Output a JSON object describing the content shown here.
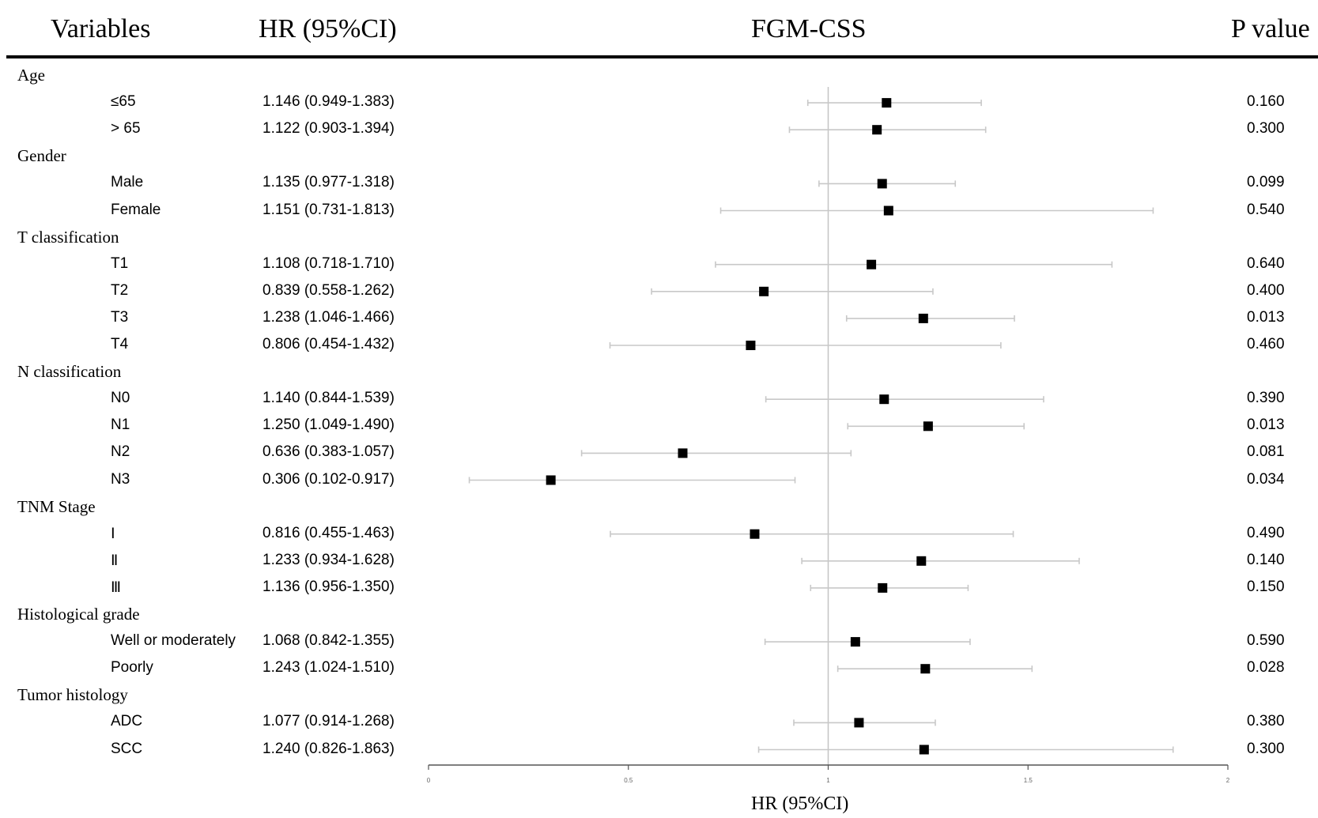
{
  "headers": {
    "variables": "Variables",
    "hr": "HR (95%CI)",
    "plot": "FGM-CSS",
    "pvalue": "P value"
  },
  "chart_data": {
    "type": "forest",
    "title": "FGM-CSS",
    "xlabel": "HR (95%CI)",
    "xlim": [
      0,
      2
    ],
    "xticks": [
      "0",
      "0.5",
      "1",
      "1.5",
      "2"
    ],
    "reference_line": 1,
    "rows": [
      {
        "kind": "group",
        "label": "Age"
      },
      {
        "kind": "item",
        "label": "≤65",
        "hr_text": "1.146 (0.949-1.383)",
        "hr": 1.146,
        "lo": 0.949,
        "hi": 1.383,
        "p": "0.160"
      },
      {
        "kind": "item",
        "label": "> 65",
        "hr_text": "1.122 (0.903-1.394)",
        "hr": 1.122,
        "lo": 0.903,
        "hi": 1.394,
        "p": "0.300"
      },
      {
        "kind": "group",
        "label": "Gender"
      },
      {
        "kind": "item",
        "label": "Male",
        "hr_text": "1.135 (0.977-1.318)",
        "hr": 1.135,
        "lo": 0.977,
        "hi": 1.318,
        "p": "0.099"
      },
      {
        "kind": "item",
        "label": "Female",
        "hr_text": "1.151 (0.731-1.813)",
        "hr": 1.151,
        "lo": 0.731,
        "hi": 1.813,
        "p": "0.540"
      },
      {
        "kind": "group",
        "label": "T classification"
      },
      {
        "kind": "item",
        "label": "T1",
        "hr_text": "1.108 (0.718-1.710)",
        "hr": 1.108,
        "lo": 0.718,
        "hi": 1.71,
        "p": "0.640"
      },
      {
        "kind": "item",
        "label": "T2",
        "hr_text": "0.839 (0.558-1.262)",
        "hr": 0.839,
        "lo": 0.558,
        "hi": 1.262,
        "p": "0.400"
      },
      {
        "kind": "item",
        "label": "T3",
        "hr_text": "1.238 (1.046-1.466)",
        "hr": 1.238,
        "lo": 1.046,
        "hi": 1.466,
        "p": "0.013"
      },
      {
        "kind": "item",
        "label": "T4",
        "hr_text": "0.806 (0.454-1.432)",
        "hr": 0.806,
        "lo": 0.454,
        "hi": 1.432,
        "p": "0.460"
      },
      {
        "kind": "group",
        "label": "N classification"
      },
      {
        "kind": "item",
        "label": "N0",
        "hr_text": "1.140 (0.844-1.539)",
        "hr": 1.14,
        "lo": 0.844,
        "hi": 1.539,
        "p": "0.390"
      },
      {
        "kind": "item",
        "label": "N1",
        "hr_text": "1.250 (1.049-1.490)",
        "hr": 1.25,
        "lo": 1.049,
        "hi": 1.49,
        "p": "0.013"
      },
      {
        "kind": "item",
        "label": "N2",
        "hr_text": "0.636 (0.383-1.057)",
        "hr": 0.636,
        "lo": 0.383,
        "hi": 1.057,
        "p": "0.081"
      },
      {
        "kind": "item",
        "label": "N3",
        "hr_text": "0.306 (0.102-0.917)",
        "hr": 0.306,
        "lo": 0.102,
        "hi": 0.917,
        "p": "0.034"
      },
      {
        "kind": "group",
        "label": "TNM Stage"
      },
      {
        "kind": "item",
        "label": "Ⅰ",
        "hr_text": "0.816 (0.455-1.463)",
        "hr": 0.816,
        "lo": 0.455,
        "hi": 1.463,
        "p": "0.490"
      },
      {
        "kind": "item",
        "label": "Ⅱ",
        "hr_text": "1.233 (0.934-1.628)",
        "hr": 1.233,
        "lo": 0.934,
        "hi": 1.628,
        "p": "0.140"
      },
      {
        "kind": "item",
        "label": "Ⅲ",
        "hr_text": "1.136 (0.956-1.350)",
        "hr": 1.136,
        "lo": 0.956,
        "hi": 1.35,
        "p": "0.150"
      },
      {
        "kind": "group",
        "label": "Histological grade"
      },
      {
        "kind": "item",
        "label": "Well or moderately",
        "hr_text": "1.068 (0.842-1.355)",
        "hr": 1.068,
        "lo": 0.842,
        "hi": 1.355,
        "p": "0.590"
      },
      {
        "kind": "item",
        "label": "Poorly",
        "hr_text": "1.243 (1.024-1.510)",
        "hr": 1.243,
        "lo": 1.024,
        "hi": 1.51,
        "p": "0.028"
      },
      {
        "kind": "group",
        "label": "Tumor histology"
      },
      {
        "kind": "item",
        "label": "ADC",
        "hr_text": "1.077 (0.914-1.268)",
        "hr": 1.077,
        "lo": 0.914,
        "hi": 1.268,
        "p": "0.380"
      },
      {
        "kind": "item",
        "label": "SCC",
        "hr_text": "1.240 (0.826-1.863)",
        "hr": 1.24,
        "lo": 0.826,
        "hi": 1.863,
        "p": "0.300"
      }
    ]
  }
}
